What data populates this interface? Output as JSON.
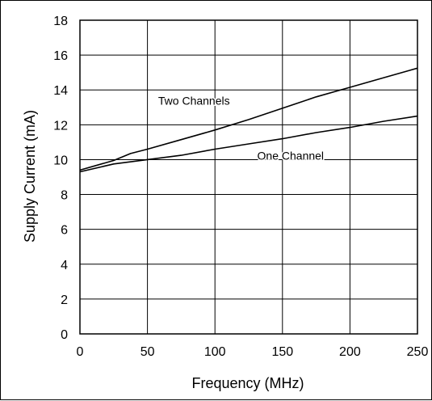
{
  "chart_data": {
    "type": "line",
    "title": "",
    "xlabel": "Frequency (MHz)",
    "ylabel": "Supply Current (mA)",
    "xlim": [
      0,
      250
    ],
    "ylim": [
      0,
      18
    ],
    "xticks": [
      0,
      50,
      100,
      150,
      200,
      250
    ],
    "yticks": [
      0,
      2,
      4,
      6,
      8,
      10,
      12,
      14,
      16,
      18
    ],
    "grid": true,
    "legend": "none",
    "colors": {
      "line": "#000000",
      "grid": "#000000",
      "background": "#ffffff"
    },
    "series": [
      {
        "name": "Two Channels",
        "x": [
          0,
          25,
          37.5,
          50,
          75,
          100,
          125,
          150,
          175,
          200,
          225,
          250
        ],
        "y": [
          9.4,
          9.95,
          10.35,
          10.6,
          11.15,
          11.7,
          12.3,
          12.95,
          13.6,
          14.15,
          14.7,
          15.25
        ]
      },
      {
        "name": "One Channel",
        "x": [
          0,
          25,
          50,
          75,
          100,
          125,
          150,
          175,
          200,
          225,
          250
        ],
        "y": [
          9.3,
          9.75,
          10.0,
          10.25,
          10.6,
          10.9,
          11.2,
          11.55,
          11.85,
          12.2,
          12.5
        ]
      }
    ],
    "annotations": [
      {
        "text": "Two Channels",
        "series": 0,
        "anchor_x": 112
      },
      {
        "text": "One Channel",
        "series": 1,
        "anchor_x": 150
      }
    ]
  }
}
